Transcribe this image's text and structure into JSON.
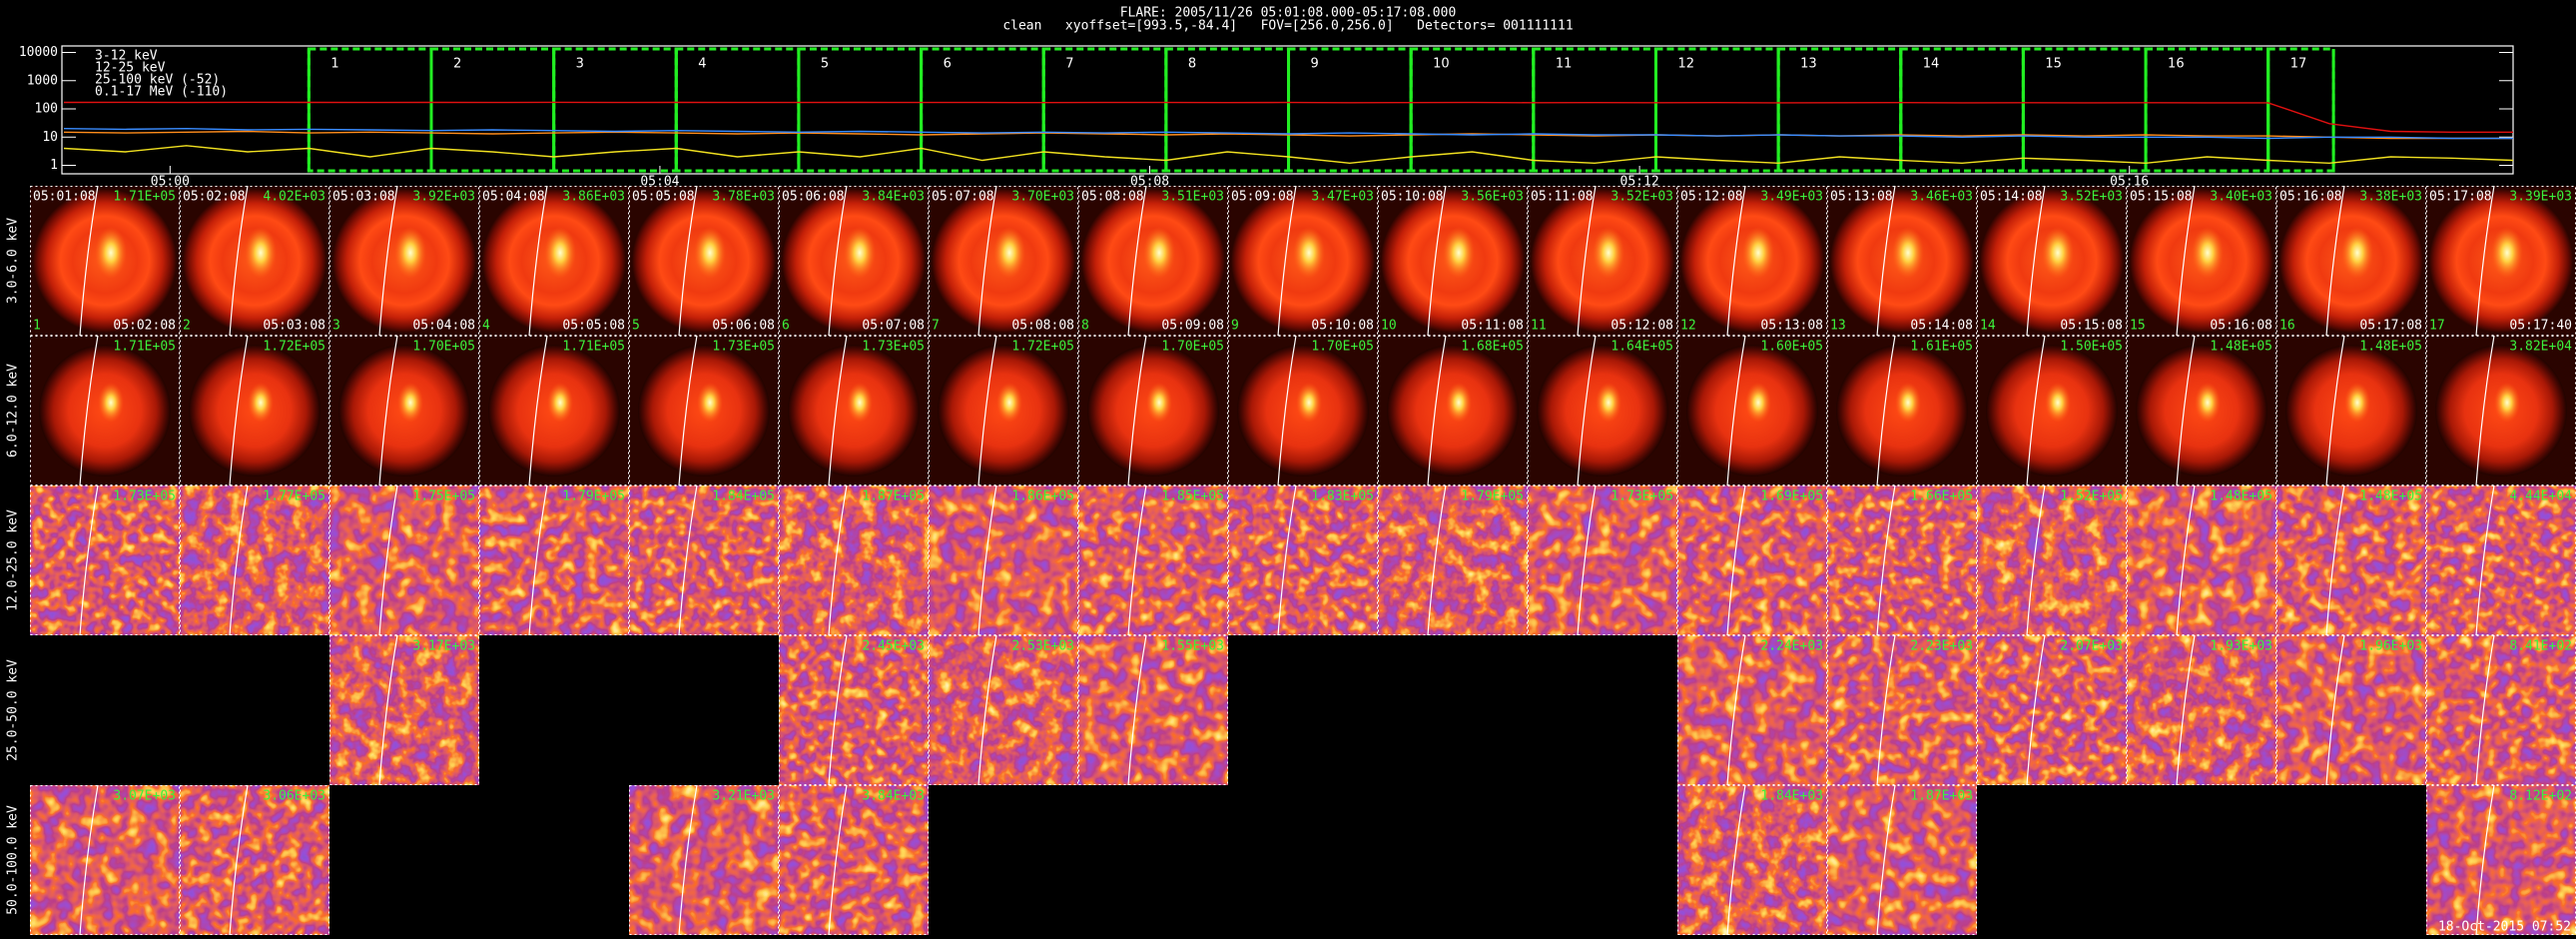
{
  "header": {
    "title": "FLARE: 2005/11/26 05:01:08.000-05:17:08.000",
    "subtitle": "clean   xyoffset=[993.5,-84.4]   FOV=[256.0,256.0]   Detectors= 001111111"
  },
  "chart_data": {
    "type": "line",
    "log_y": true,
    "x": [
      "04:59:08",
      "04:59:38",
      "05:00:08",
      "05:00:38",
      "05:01:08",
      "05:01:38",
      "05:02:08",
      "05:02:38",
      "05:03:08",
      "05:03:38",
      "05:04:08",
      "05:04:38",
      "05:05:08",
      "05:05:38",
      "05:06:08",
      "05:06:38",
      "05:07:08",
      "05:07:38",
      "05:08:08",
      "05:08:38",
      "05:09:08",
      "05:09:38",
      "05:10:08",
      "05:10:38",
      "05:11:08",
      "05:11:38",
      "05:12:08",
      "05:12:38",
      "05:13:08",
      "05:13:38",
      "05:14:08",
      "05:14:38",
      "05:15:08",
      "05:15:38",
      "05:16:08",
      "05:16:38",
      "05:17:08",
      "05:17:38",
      "05:18:08",
      "05:18:38",
      "05:19:08"
    ],
    "xlim": [
      "04:59:07",
      "05:19:08"
    ],
    "xticks": [
      "05:00",
      "05:04",
      "05:08",
      "05:12",
      "05:16"
    ],
    "ylim": [
      0.5,
      17000
    ],
    "yticks": [
      1,
      10,
      100,
      1000,
      10000
    ],
    "series": [
      {
        "name": "3-12 keV",
        "color": "#e01010",
        "values": [
          170,
          172,
          168,
          171,
          170,
          169,
          170,
          168,
          171,
          169,
          170,
          168,
          169,
          170,
          168,
          169,
          167,
          168,
          169,
          167,
          168,
          166,
          167,
          168,
          166,
          167,
          166,
          167,
          165,
          166,
          167,
          165,
          166,
          165,
          166,
          165,
          164,
          30,
          16,
          15,
          15
        ]
      },
      {
        "name": "12-25 keV",
        "color": "#ff8c1a",
        "values": [
          15,
          14,
          15,
          16,
          14,
          15,
          14,
          13,
          14,
          15,
          14,
          13,
          14,
          13,
          12,
          13,
          14,
          13,
          12,
          13,
          12,
          11,
          12,
          13,
          12,
          11,
          12,
          11,
          12,
          11,
          12,
          11,
          12,
          11,
          12,
          11,
          11,
          10,
          9,
          9,
          9
        ]
      },
      {
        "name": "25-100 keV (-52)",
        "color": "#f0e020",
        "values": [
          4,
          3,
          5,
          3,
          4,
          2,
          4,
          3,
          2,
          3,
          4,
          2,
          3,
          2,
          4,
          1.5,
          3,
          2,
          1.5,
          3,
          2,
          1.2,
          2,
          3,
          1.5,
          1.2,
          2,
          1.5,
          1.2,
          2,
          1.5,
          1.2,
          1.8,
          1.5,
          1.2,
          2,
          1.5,
          1.2,
          2,
          1.8,
          1.5
        ]
      },
      {
        "name": "0.1-17 MeV (-110)",
        "color": "#3a8cff",
        "values": [
          20,
          19,
          20,
          18,
          19,
          18,
          17,
          18,
          17,
          16,
          17,
          16,
          15,
          16,
          15,
          14,
          15,
          14,
          15,
          14,
          13,
          14,
          13,
          12,
          13,
          12,
          12,
          11,
          12,
          11,
          11,
          10,
          11,
          10,
          10,
          10,
          9,
          10,
          10,
          9,
          9
        ]
      }
    ]
  },
  "image_grid": {
    "energy_bands": [
      "3.0-6.0 keV",
      "6.0-12.0 keV",
      "12.0-25.0 keV",
      "25.0-50.0 keV",
      "50.0-100.0 keV"
    ],
    "columns": [
      {
        "index": 1,
        "start": "05:01:08",
        "end": "05:02:08"
      },
      {
        "index": 2,
        "start": "05:02:08",
        "end": "05:03:08"
      },
      {
        "index": 3,
        "start": "05:03:08",
        "end": "05:04:08"
      },
      {
        "index": 4,
        "start": "05:04:08",
        "end": "05:05:08"
      },
      {
        "index": 5,
        "start": "05:05:08",
        "end": "05:06:08"
      },
      {
        "index": 6,
        "start": "05:06:08",
        "end": "05:07:08"
      },
      {
        "index": 7,
        "start": "05:07:08",
        "end": "05:08:08"
      },
      {
        "index": 8,
        "start": "05:08:08",
        "end": "05:09:08"
      },
      {
        "index": 9,
        "start": "05:09:08",
        "end": "05:10:08"
      },
      {
        "index": 10,
        "start": "05:10:08",
        "end": "05:11:08"
      },
      {
        "index": 11,
        "start": "05:11:08",
        "end": "05:12:08"
      },
      {
        "index": 12,
        "start": "05:12:08",
        "end": "05:13:08"
      },
      {
        "index": 13,
        "start": "05:13:08",
        "end": "05:14:08"
      },
      {
        "index": 14,
        "start": "05:14:08",
        "end": "05:15:08"
      },
      {
        "index": 15,
        "start": "05:15:08",
        "end": "05:16:08"
      },
      {
        "index": 16,
        "start": "05:16:08",
        "end": "05:17:08"
      },
      {
        "index": 17,
        "start": "05:17:08",
        "end": "05:17:40"
      }
    ],
    "peaks": [
      [
        "1.71E+05",
        "4.02E+03",
        "3.92E+03",
        "3.86E+03",
        "3.78E+03",
        "3.84E+03",
        "3.70E+03",
        "3.51E+03",
        "3.47E+03",
        "3.56E+03",
        "3.52E+03",
        "3.49E+03",
        "3.46E+03",
        "3.52E+03",
        "3.40E+03",
        "3.38E+03",
        "3.39E+03"
      ],
      [
        "1.71E+05",
        "1.72E+05",
        "1.70E+05",
        "1.71E+05",
        "1.73E+05",
        "1.73E+05",
        "1.72E+05",
        "1.70E+05",
        "1.70E+05",
        "1.68E+05",
        "1.64E+05",
        "1.60E+05",
        "1.61E+05",
        "1.50E+05",
        "1.48E+05",
        "1.48E+05",
        "3.82E+04"
      ],
      [
        "1.73E+05",
        "1.77E+05",
        "1.75E+05",
        "1.79E+05",
        "1.84E+05",
        "1.87E+05",
        "1.86E+05",
        "1.85E+05",
        "1.83E+05",
        "1.79E+05",
        "1.73E+05",
        "1.69E+05",
        "1.66E+05",
        "1.52E+05",
        "1.48E+05",
        "1.48E+05",
        "4.44E+04"
      ],
      [
        null,
        null,
        "3.17E+03",
        null,
        null,
        "2.45E+03",
        "2.53E+03",
        "1.55E+03",
        null,
        null,
        null,
        "2.24E+03",
        "2.23E+03",
        "2.07E+03",
        "1.93E+03",
        "1.96E+03",
        "8.41E+02"
      ],
      [
        "3.07E+03",
        "3.06E+03",
        null,
        null,
        "3.21E+03",
        "3.84E+03",
        null,
        null,
        null,
        null,
        null,
        "1.84E+03",
        "1.87E+03",
        null,
        null,
        null,
        "8.12E+02"
      ]
    ]
  },
  "footer": "18-Oct-2015 07:52"
}
